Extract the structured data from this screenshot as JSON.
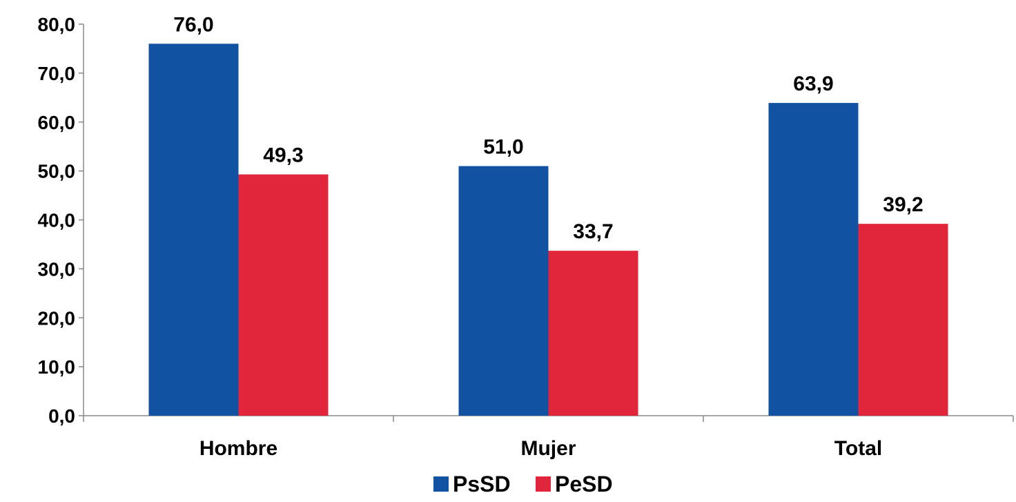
{
  "chart_data": {
    "type": "bar",
    "title": "",
    "xlabel": "",
    "ylabel": "",
    "categories": [
      "Hombre",
      "Mujer",
      "Total"
    ],
    "series": [
      {
        "name": "PsSD",
        "color": "#1152A3",
        "values": [
          76.0,
          51.0,
          63.9
        ],
        "labels": [
          "76,0",
          "51,0",
          "63,9"
        ]
      },
      {
        "name": "PeSD",
        "color": "#E1253A",
        "values": [
          49.3,
          33.7,
          39.2
        ],
        "labels": [
          "49,3",
          "33,7",
          "39,2"
        ]
      }
    ],
    "ylim": [
      0,
      80
    ],
    "yticks": [
      0,
      10,
      20,
      30,
      40,
      50,
      60,
      70,
      80
    ],
    "ytick_labels": [
      "0,0",
      "10,0",
      "20,0",
      "30,0",
      "40,0",
      "50,0",
      "60,0",
      "70,0",
      "80,0"
    ],
    "grid": false,
    "legend_position": "bottom-center"
  }
}
